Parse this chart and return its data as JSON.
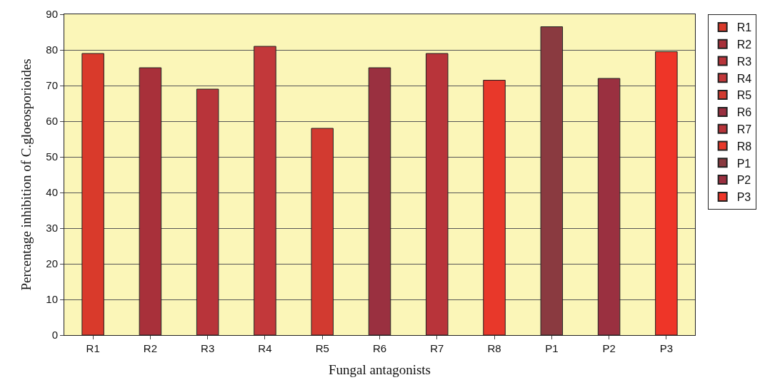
{
  "chart_data": {
    "type": "bar",
    "xlabel": "Fungal antagonists",
    "ylabel": "Percentage inhibition of C.gloeosporioides",
    "categories": [
      "R1",
      "R2",
      "R3",
      "R4",
      "R5",
      "R6",
      "R7",
      "R8",
      "P1",
      "P2",
      "P3"
    ],
    "series": [
      {
        "name": "R1",
        "color": "#d93a2b",
        "values": [
          79,
          null,
          null,
          null,
          null,
          null,
          null,
          null,
          null,
          null,
          null
        ]
      },
      {
        "name": "R2",
        "color": "#a8303a",
        "values": [
          null,
          75,
          null,
          null,
          null,
          null,
          null,
          null,
          null,
          null,
          null
        ]
      },
      {
        "name": "R3",
        "color": "#b8343a",
        "values": [
          null,
          null,
          69,
          null,
          null,
          null,
          null,
          null,
          null,
          null,
          null
        ]
      },
      {
        "name": "R4",
        "color": "#c2383a",
        "values": [
          null,
          null,
          null,
          81,
          null,
          null,
          null,
          null,
          null,
          null,
          null
        ]
      },
      {
        "name": "R5",
        "color": "#d23a30",
        "values": [
          null,
          null,
          null,
          null,
          58,
          null,
          null,
          null,
          null,
          null,
          null
        ]
      },
      {
        "name": "R6",
        "color": "#9a3040",
        "values": [
          null,
          null,
          null,
          null,
          null,
          75,
          null,
          null,
          null,
          null,
          null
        ]
      },
      {
        "name": "R7",
        "color": "#b8343a",
        "values": [
          null,
          null,
          null,
          null,
          null,
          null,
          79,
          null,
          null,
          null,
          null
        ]
      },
      {
        "name": "R8",
        "color": "#e8382a",
        "values": [
          null,
          null,
          null,
          null,
          null,
          null,
          null,
          71.5,
          null,
          null,
          null
        ]
      },
      {
        "name": "P1",
        "color": "#8a3a40",
        "values": [
          null,
          null,
          null,
          null,
          null,
          null,
          null,
          null,
          86.5,
          null,
          null
        ]
      },
      {
        "name": "P2",
        "color": "#9a3040",
        "values": [
          null,
          null,
          null,
          null,
          null,
          null,
          null,
          null,
          null,
          72,
          null
        ]
      },
      {
        "name": "P3",
        "color": "#ee3528",
        "values": [
          null,
          null,
          null,
          null,
          null,
          null,
          null,
          null,
          null,
          null,
          79.5
        ]
      }
    ],
    "ylim": [
      0,
      90
    ],
    "yticks": [
      0,
      10,
      20,
      30,
      40,
      50,
      60,
      70,
      80,
      90
    ],
    "grid": "y",
    "legend": "right"
  }
}
